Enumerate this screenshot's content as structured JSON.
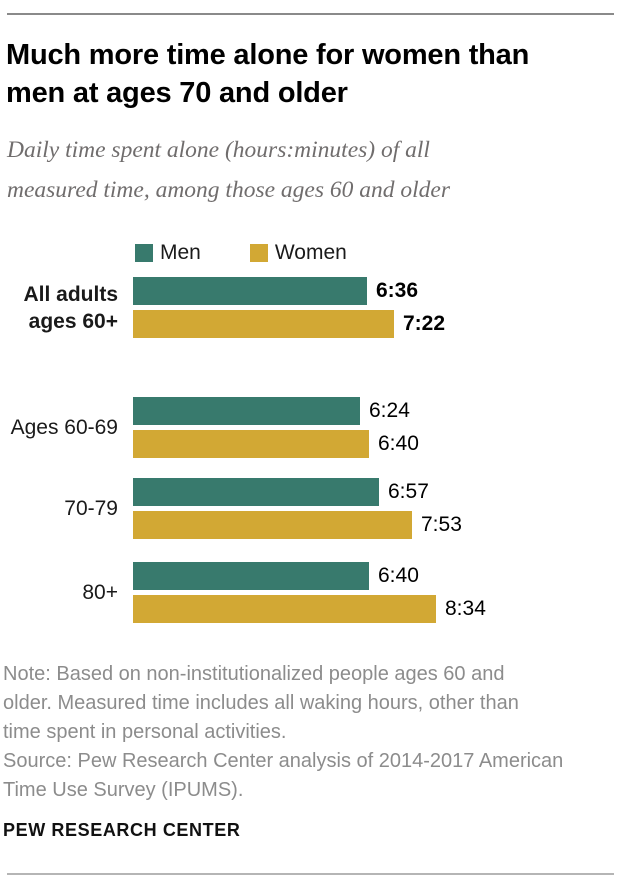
{
  "header": {
    "title": "Much more time alone for women than\nmen at ages 70 and older",
    "subtitle": "Daily time spent alone (hours:minutes) of all\nmeasured time, among those ages 60 and older"
  },
  "chart_data": {
    "type": "bar",
    "orientation": "horizontal",
    "title": "Much more time alone for women than men at ages 70 and older",
    "subtitle": "Daily time spent alone (hours:minutes) of all measured time, among those ages 60 and older",
    "value_format": "hours:minutes",
    "categories": [
      "All adults ages 60+",
      "Ages 60-69",
      "70-79",
      "80+"
    ],
    "series": [
      {
        "name": "Men",
        "color": "#387a6d",
        "labels": [
          "6:36",
          "6:24",
          "6:57",
          "6:40"
        ],
        "values_minutes": [
          396,
          384,
          417,
          400
        ]
      },
      {
        "name": "Women",
        "color": "#d2a834",
        "labels": [
          "7:22",
          "6:40",
          "7:53",
          "8:34"
        ],
        "values_minutes": [
          442,
          400,
          473,
          514
        ]
      }
    ],
    "xlim_minutes": [
      0,
      540
    ],
    "grid": false,
    "legend_position": "top",
    "emphasized_category": "All adults ages 60+"
  },
  "footer": {
    "note": "Note: Based on non-institutionalized people ages 60 and\nolder. Measured time includes all waking hours, other than\ntime spent in personal activities.",
    "source": "Source: Pew Research Center analysis of 2014-2017 American\nTime Use Survey (IPUMS).",
    "brand": "PEW RESEARCH CENTER"
  }
}
